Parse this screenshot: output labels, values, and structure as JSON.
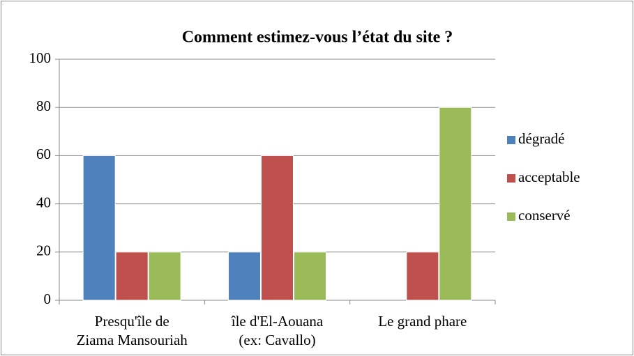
{
  "chart_data": {
    "type": "bar",
    "title": "Comment estimez-vous l’état du site ?",
    "categories": [
      [
        "Presqu'île de",
        "Ziama Mansouriah"
      ],
      [
        "île d'El-Aouana",
        "(ex: Cavallo)"
      ],
      [
        "Le grand phare"
      ]
    ],
    "series": [
      {
        "name": "dégradé",
        "color": "#4f81bd",
        "values": [
          60,
          20,
          0
        ]
      },
      {
        "name": "acceptable",
        "color": "#c0504d",
        "values": [
          20,
          60,
          20
        ]
      },
      {
        "name": "conservé",
        "color": "#9bbb59",
        "values": [
          20,
          20,
          80
        ]
      }
    ],
    "ylim": [
      0,
      100
    ],
    "yticks": [
      0,
      20,
      40,
      60,
      80,
      100
    ],
    "grid": true,
    "legend": "right"
  }
}
